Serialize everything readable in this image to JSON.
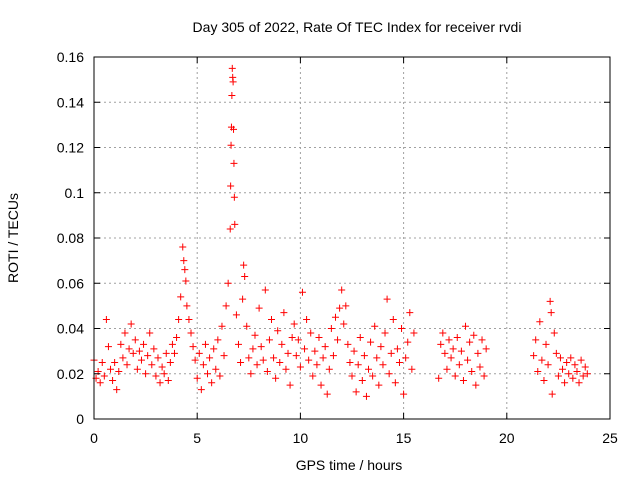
{
  "chart_data": {
    "type": "scatter",
    "title": "Day 305 of 2022, Rate Of TEC Index for receiver rvdi",
    "xlabel": "GPS time / hours",
    "ylabel": "ROTI / TECUs",
    "xlim": [
      0,
      25
    ],
    "ylim": [
      0,
      0.16
    ],
    "x_ticks": [
      0,
      5,
      10,
      15,
      20,
      25
    ],
    "x_tick_labels": [
      "0",
      "5",
      "10",
      "15",
      "20",
      "25"
    ],
    "y_ticks": [
      0,
      0.02,
      0.04,
      0.06,
      0.08,
      0.1,
      0.12,
      0.14,
      0.16
    ],
    "y_tick_labels": [
      "0",
      "0.02",
      "0.04",
      "0.06",
      "0.08",
      "0.1",
      "0.12",
      "0.14",
      "0.16"
    ],
    "grid": true,
    "marker": "plus",
    "color": "#ff0000",
    "series": [
      {
        "points": [
          [
            0.0,
            0.026
          ],
          [
            0.1,
            0.018
          ],
          [
            0.2,
            0.021
          ],
          [
            0.3,
            0.016
          ],
          [
            0.4,
            0.025
          ],
          [
            0.5,
            0.019
          ],
          [
            0.6,
            0.044
          ],
          [
            0.7,
            0.032
          ],
          [
            0.8,
            0.022
          ],
          [
            0.9,
            0.017
          ],
          [
            1.0,
            0.025
          ],
          [
            1.1,
            0.013
          ],
          [
            1.2,
            0.021
          ],
          [
            1.3,
            0.033
          ],
          [
            1.4,
            0.027
          ],
          [
            1.5,
            0.038
          ],
          [
            1.6,
            0.024
          ],
          [
            1.7,
            0.031
          ],
          [
            1.8,
            0.042
          ],
          [
            1.9,
            0.029
          ],
          [
            2.0,
            0.035
          ],
          [
            2.1,
            0.022
          ],
          [
            2.2,
            0.03
          ],
          [
            2.3,
            0.026
          ],
          [
            2.4,
            0.033
          ],
          [
            2.5,
            0.02
          ],
          [
            2.6,
            0.028
          ],
          [
            2.7,
            0.038
          ],
          [
            2.8,
            0.024
          ],
          [
            2.9,
            0.031
          ],
          [
            3.0,
            0.019
          ],
          [
            3.1,
            0.027
          ],
          [
            3.2,
            0.016
          ],
          [
            3.3,
            0.023
          ],
          [
            3.4,
            0.02
          ],
          [
            3.5,
            0.029
          ],
          [
            3.6,
            0.017
          ],
          [
            3.7,
            0.025
          ],
          [
            3.8,
            0.033
          ],
          [
            3.9,
            0.029
          ],
          [
            4.0,
            0.036
          ],
          [
            4.1,
            0.044
          ],
          [
            4.2,
            0.054
          ],
          [
            4.3,
            0.076
          ],
          [
            4.35,
            0.07
          ],
          [
            4.4,
            0.066
          ],
          [
            4.45,
            0.061
          ],
          [
            4.5,
            0.05
          ],
          [
            4.6,
            0.044
          ],
          [
            4.7,
            0.038
          ],
          [
            4.8,
            0.032
          ],
          [
            4.9,
            0.026
          ],
          [
            5.0,
            0.018
          ],
          [
            5.1,
            0.029
          ],
          [
            5.2,
            0.013
          ],
          [
            5.3,
            0.024
          ],
          [
            5.4,
            0.033
          ],
          [
            5.5,
            0.02
          ],
          [
            5.6,
            0.027
          ],
          [
            5.7,
            0.016
          ],
          [
            5.8,
            0.031
          ],
          [
            5.9,
            0.022
          ],
          [
            6.0,
            0.035
          ],
          [
            6.1,
            0.019
          ],
          [
            6.2,
            0.041
          ],
          [
            6.3,
            0.028
          ],
          [
            6.4,
            0.05
          ],
          [
            6.5,
            0.06
          ],
          [
            6.6,
            0.084
          ],
          [
            6.62,
            0.103
          ],
          [
            6.64,
            0.121
          ],
          [
            6.66,
            0.129
          ],
          [
            6.68,
            0.143
          ],
          [
            6.7,
            0.155
          ],
          [
            6.72,
            0.151
          ],
          [
            6.74,
            0.149
          ],
          [
            6.76,
            0.128
          ],
          [
            6.78,
            0.113
          ],
          [
            6.8,
            0.098
          ],
          [
            6.82,
            0.086
          ],
          [
            6.9,
            0.046
          ],
          [
            7.0,
            0.033
          ],
          [
            7.1,
            0.025
          ],
          [
            7.2,
            0.053
          ],
          [
            7.25,
            0.068
          ],
          [
            7.3,
            0.063
          ],
          [
            7.4,
            0.041
          ],
          [
            7.5,
            0.027
          ],
          [
            7.6,
            0.02
          ],
          [
            7.7,
            0.031
          ],
          [
            7.8,
            0.037
          ],
          [
            7.9,
            0.024
          ],
          [
            8.0,
            0.049
          ],
          [
            8.1,
            0.032
          ],
          [
            8.2,
            0.026
          ],
          [
            8.3,
            0.057
          ],
          [
            8.4,
            0.021
          ],
          [
            8.5,
            0.035
          ],
          [
            8.6,
            0.044
          ],
          [
            8.7,
            0.027
          ],
          [
            8.8,
            0.018
          ],
          [
            8.9,
            0.039
          ],
          [
            9.0,
            0.025
          ],
          [
            9.1,
            0.033
          ],
          [
            9.2,
            0.047
          ],
          [
            9.3,
            0.022
          ],
          [
            9.4,
            0.029
          ],
          [
            9.5,
            0.015
          ],
          [
            9.6,
            0.036
          ],
          [
            9.7,
            0.042
          ],
          [
            9.8,
            0.028
          ],
          [
            9.9,
            0.035
          ],
          [
            10.0,
            0.023
          ],
          [
            10.1,
            0.056
          ],
          [
            10.2,
            0.031
          ],
          [
            10.3,
            0.044
          ],
          [
            10.4,
            0.026
          ],
          [
            10.5,
            0.038
          ],
          [
            10.6,
            0.019
          ],
          [
            10.7,
            0.03
          ],
          [
            10.8,
            0.024
          ],
          [
            10.9,
            0.036
          ],
          [
            11.0,
            0.015
          ],
          [
            11.1,
            0.027
          ],
          [
            11.2,
            0.032
          ],
          [
            11.3,
            0.011
          ],
          [
            11.4,
            0.022
          ],
          [
            11.5,
            0.04
          ],
          [
            11.6,
            0.028
          ],
          [
            11.7,
            0.045
          ],
          [
            11.8,
            0.035
          ],
          [
            11.9,
            0.049
          ],
          [
            12.0,
            0.057
          ],
          [
            12.1,
            0.042
          ],
          [
            12.2,
            0.05
          ],
          [
            12.3,
            0.033
          ],
          [
            12.4,
            0.025
          ],
          [
            12.5,
            0.019
          ],
          [
            12.6,
            0.03
          ],
          [
            12.7,
            0.012
          ],
          [
            12.8,
            0.024
          ],
          [
            12.9,
            0.036
          ],
          [
            13.0,
            0.017
          ],
          [
            13.1,
            0.028
          ],
          [
            13.2,
            0.01
          ],
          [
            13.3,
            0.022
          ],
          [
            13.4,
            0.034
          ],
          [
            13.5,
            0.019
          ],
          [
            13.6,
            0.041
          ],
          [
            13.7,
            0.027
          ],
          [
            13.8,
            0.015
          ],
          [
            13.9,
            0.032
          ],
          [
            14.0,
            0.024
          ],
          [
            14.1,
            0.038
          ],
          [
            14.2,
            0.053
          ],
          [
            14.3,
            0.02
          ],
          [
            14.4,
            0.029
          ],
          [
            14.5,
            0.044
          ],
          [
            14.6,
            0.016
          ],
          [
            14.7,
            0.031
          ],
          [
            14.8,
            0.025
          ],
          [
            14.9,
            0.04
          ],
          [
            15.0,
            0.011
          ],
          [
            15.1,
            0.027
          ],
          [
            15.2,
            0.034
          ],
          [
            15.3,
            0.047
          ],
          [
            15.4,
            0.022
          ],
          [
            15.5,
            0.038
          ],
          [
            16.7,
            0.018
          ],
          [
            16.8,
            0.033
          ],
          [
            16.9,
            0.038
          ],
          [
            17.0,
            0.029
          ],
          [
            17.1,
            0.022
          ],
          [
            17.2,
            0.035
          ],
          [
            17.3,
            0.027
          ],
          [
            17.4,
            0.031
          ],
          [
            17.5,
            0.019
          ],
          [
            17.6,
            0.036
          ],
          [
            17.7,
            0.024
          ],
          [
            17.8,
            0.03
          ],
          [
            17.9,
            0.017
          ],
          [
            18.0,
            0.041
          ],
          [
            18.1,
            0.026
          ],
          [
            18.2,
            0.034
          ],
          [
            18.3,
            0.021
          ],
          [
            18.4,
            0.037
          ],
          [
            18.5,
            0.015
          ],
          [
            18.6,
            0.029
          ],
          [
            18.7,
            0.023
          ],
          [
            18.8,
            0.035
          ],
          [
            18.9,
            0.019
          ],
          [
            19.0,
            0.031
          ],
          [
            21.3,
            0.028
          ],
          [
            21.4,
            0.035
          ],
          [
            21.5,
            0.021
          ],
          [
            21.6,
            0.043
          ],
          [
            21.7,
            0.026
          ],
          [
            21.8,
            0.017
          ],
          [
            21.9,
            0.033
          ],
          [
            22.0,
            0.024
          ],
          [
            22.1,
            0.052
          ],
          [
            22.15,
            0.047
          ],
          [
            22.2,
            0.011
          ],
          [
            22.3,
            0.038
          ],
          [
            22.4,
            0.029
          ],
          [
            22.5,
            0.019
          ],
          [
            22.6,
            0.027
          ],
          [
            22.7,
            0.022
          ],
          [
            22.8,
            0.016
          ],
          [
            22.9,
            0.025
          ],
          [
            23.0,
            0.02
          ],
          [
            23.1,
            0.027
          ],
          [
            23.2,
            0.018
          ],
          [
            23.3,
            0.024
          ],
          [
            23.4,
            0.021
          ],
          [
            23.5,
            0.016
          ],
          [
            23.6,
            0.026
          ],
          [
            23.7,
            0.019
          ],
          [
            23.8,
            0.023
          ],
          [
            23.9,
            0.02
          ]
        ]
      }
    ]
  }
}
